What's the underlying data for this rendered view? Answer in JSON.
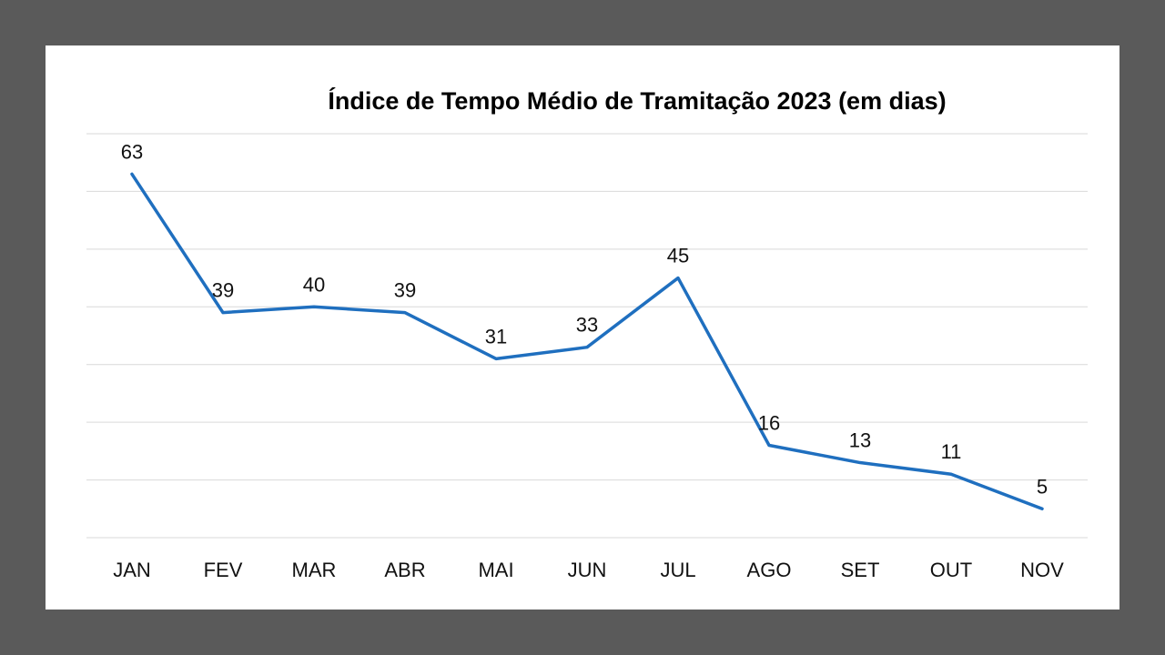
{
  "chart_data": {
    "type": "line",
    "title": "Índice de Tempo Médio de Tramitação 2023 (em dias)",
    "categories": [
      "JAN",
      "FEV",
      "MAR",
      "ABR",
      "MAI",
      "JUN",
      "JUL",
      "AGO",
      "SET",
      "OUT",
      "NOV"
    ],
    "series": [
      {
        "values": [
          63,
          39,
          40,
          39,
          31,
          33,
          45,
          16,
          13,
          11,
          5
        ],
        "color": "#1f6fbf"
      }
    ],
    "ylim": [
      0,
      70
    ],
    "grid": true,
    "data_labels": true,
    "legend": "none"
  }
}
